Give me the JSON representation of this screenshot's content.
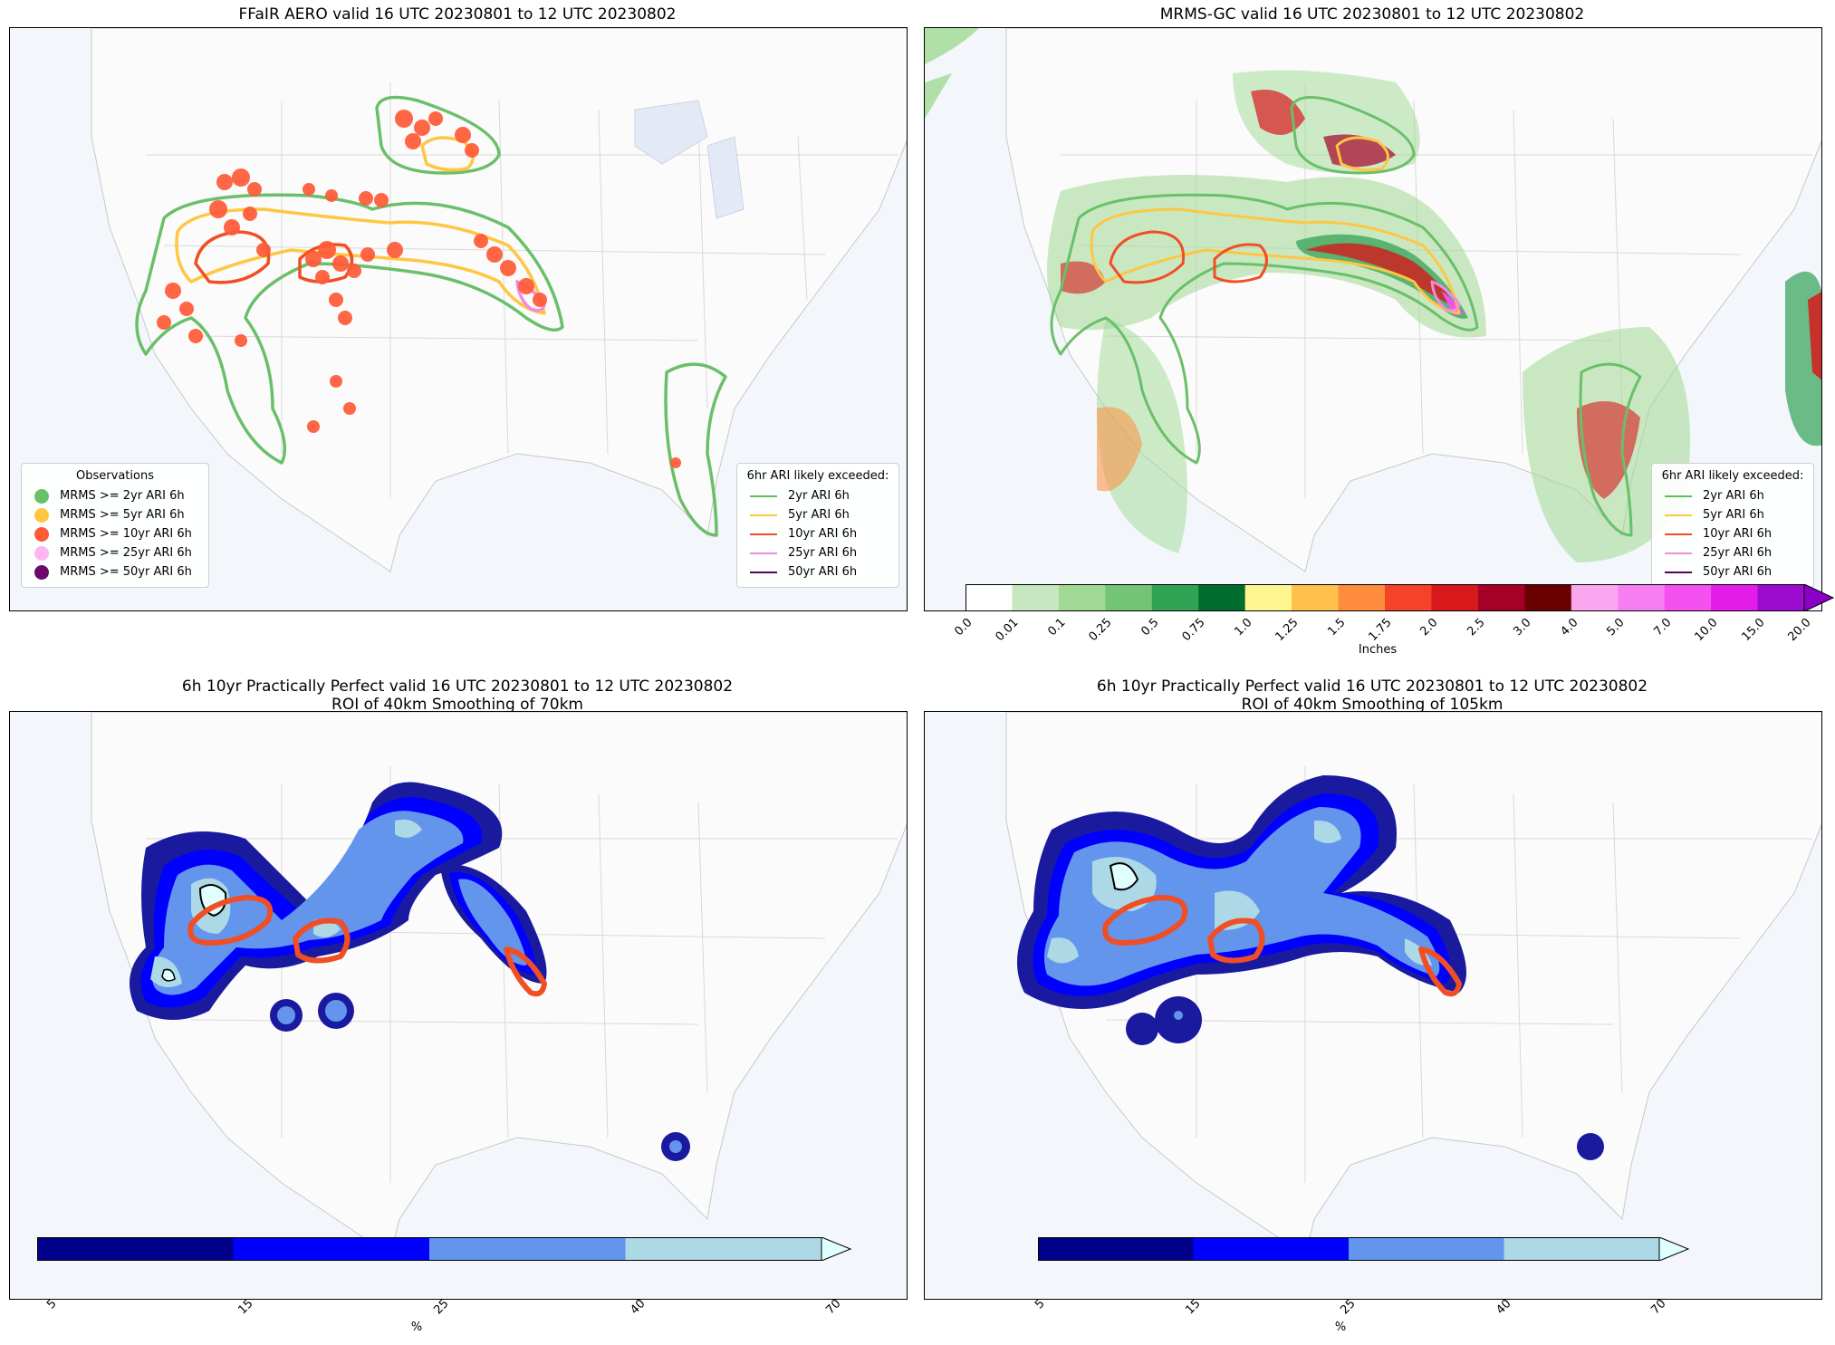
{
  "panels": {
    "tl": {
      "title": "FFaIR AERO valid 16 UTC 20230801 to 12 UTC 20230802"
    },
    "tr": {
      "title": "MRMS-GC valid 16 UTC 20230801 to 12 UTC 20230802"
    },
    "bl": {
      "title": "6h 10yr Practically Perfect valid 16 UTC 20230801 to 12 UTC 20230802\nROI of 40km Smoothing of 70km"
    },
    "br": {
      "title": "6h 10yr Practically Perfect valid 16 UTC 20230801 to 12 UTC 20230802\nROI of 40km Smoothing of 105km"
    }
  },
  "obs_legend": {
    "title": "Observations",
    "items": [
      {
        "label": "MRMS >= 2yr ARI 6h",
        "color": "#6abf69"
      },
      {
        "label": "MRMS >= 5yr ARI 6h",
        "color": "#ffc642"
      },
      {
        "label": "MRMS >= 10yr ARI 6h",
        "color": "#ff5a36"
      },
      {
        "label": "MRMS >= 25yr ARI 6h",
        "color": "#ffb6f0"
      },
      {
        "label": "MRMS >= 50yr ARI 6h",
        "color": "#6b0a6b"
      }
    ]
  },
  "ari_legend": {
    "title": "6hr ARI likely exceeded:",
    "items": [
      {
        "label": "2yr ARI 6h",
        "color": "#5cbf5c"
      },
      {
        "label": "5yr ARI 6h",
        "color": "#ffc642"
      },
      {
        "label": "10yr ARI 6h",
        "color": "#f04e24"
      },
      {
        "label": "25yr ARI 6h",
        "color": "#f08ce0"
      },
      {
        "label": "50yr ARI 6h",
        "color": "#5a005a"
      }
    ]
  },
  "precip_colorbar": {
    "label": "Inches",
    "ticks": [
      "0.0",
      "0.01",
      "0.1",
      "0.25",
      "0.5",
      "0.75",
      "1.0",
      "1.25",
      "1.5",
      "1.75",
      "2.0",
      "2.5",
      "3.0",
      "4.0",
      "5.0",
      "7.0",
      "10.0",
      "15.0",
      "20.0"
    ],
    "colors": [
      "#ffffff",
      "#c7e7c0",
      "#a0d993",
      "#74c476",
      "#31a354",
      "#006d2c",
      "#fff68f",
      "#ffc04c",
      "#fd8d3c",
      "#f44328",
      "#d7191c",
      "#a50026",
      "#6b0000",
      "#f9a8f0",
      "#f77ff2",
      "#f550f0",
      "#e31de8",
      "#9b0bd0"
    ],
    "extend_color": "#8a00c6"
  },
  "pp_colorbar_left": {
    "label": "%",
    "ticks": [
      "5",
      "15",
      "25",
      "40",
      "70"
    ],
    "colors": [
      "#00008b",
      "#0000ff",
      "#6495ed",
      "#add8e6"
    ],
    "extend_color": "#e0ffff"
  },
  "pp_colorbar_right": {
    "label": "%",
    "ticks": [
      "5",
      "15",
      "25",
      "40",
      "70"
    ],
    "colors": [
      "#00008b",
      "#0000ff",
      "#6495ed",
      "#add8e6"
    ],
    "extend_color": "#e0ffff"
  },
  "chart_data": [
    {
      "type": "other",
      "title": "FFaIR AERO valid 16 UTC 20230801 to 12 UTC 20230802",
      "legend": [
        "Observations",
        "6hr ARI likely exceeded:"
      ],
      "legend_placement": [
        "lower-left",
        "lower-right"
      ]
    },
    {
      "type": "heatmap",
      "title": "MRMS-GC valid 16 UTC 20230801 to 12 UTC 20230802",
      "colorbar_label": "Inches",
      "levels": [
        0.0,
        0.01,
        0.1,
        0.25,
        0.5,
        0.75,
        1.0,
        1.25,
        1.5,
        1.75,
        2.0,
        2.5,
        3.0,
        4.0,
        5.0,
        7.0,
        10.0,
        15.0,
        20.0
      ],
      "legend_placement": "lower-right"
    },
    {
      "type": "heatmap",
      "title": "6h 10yr Practically Perfect valid 16 UTC 20230801 to 12 UTC 20230802",
      "subtitle": "ROI of 40km Smoothing of 70km",
      "colorbar_label": "%",
      "levels": [
        5,
        15,
        25,
        40,
        70
      ]
    },
    {
      "type": "heatmap",
      "title": "6h 10yr Practically Perfect valid 16 UTC 20230801 to 12 UTC 20230802",
      "subtitle": "ROI of 40km Smoothing of 105km",
      "colorbar_label": "%",
      "levels": [
        5,
        15,
        25,
        40,
        70
      ]
    }
  ]
}
